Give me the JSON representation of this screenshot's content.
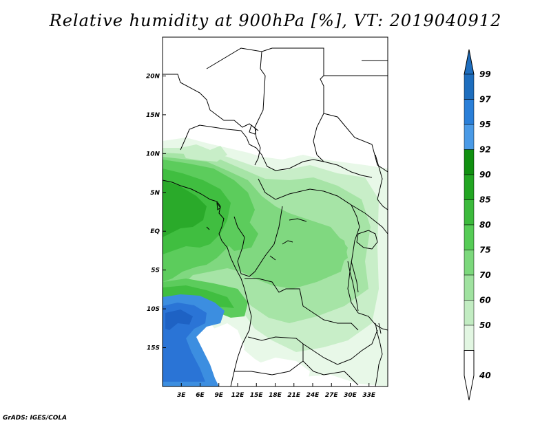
{
  "title": "Relative humidity at 900hPa [%], VT: 2019040912",
  "credit": "GrADS: IGES/COLA",
  "map": {
    "lon_range": [
      0,
      36
    ],
    "lat_range": [
      -20,
      25
    ],
    "lon_ticks": [
      {
        "value": 3,
        "label": "3E"
      },
      {
        "value": 6,
        "label": "6E"
      },
      {
        "value": 9,
        "label": "9E"
      },
      {
        "value": 12,
        "label": "12E"
      },
      {
        "value": 15,
        "label": "15E"
      },
      {
        "value": 18,
        "label": "18E"
      },
      {
        "value": 21,
        "label": "21E"
      },
      {
        "value": 24,
        "label": "24E"
      },
      {
        "value": 27,
        "label": "27E"
      },
      {
        "value": 30,
        "label": "30E"
      },
      {
        "value": 33,
        "label": "33E"
      }
    ],
    "lat_ticks": [
      {
        "value": 20,
        "label": "20N"
      },
      {
        "value": 15,
        "label": "15N"
      },
      {
        "value": 10,
        "label": "10N"
      },
      {
        "value": 5,
        "label": "5N"
      },
      {
        "value": 0,
        "label": "EQ"
      },
      {
        "value": -5,
        "label": "5S"
      },
      {
        "value": -10,
        "label": "10S"
      },
      {
        "value": -15,
        "label": "15S"
      }
    ]
  },
  "colorbar": {
    "levels": [
      {
        "label": "99",
        "color": "#1e6ebe"
      },
      {
        "label": "97",
        "color": "#2a7fd8"
      },
      {
        "label": "95",
        "color": "#4a9ae6"
      },
      {
        "label": "92",
        "color": "#109010"
      },
      {
        "label": "90",
        "color": "#22a622"
      },
      {
        "label": "85",
        "color": "#3cba3c"
      },
      {
        "label": "80",
        "color": "#56cc56"
      },
      {
        "label": "75",
        "color": "#7cd87c"
      },
      {
        "label": "70",
        "color": "#a0e2a0"
      },
      {
        "label": "60",
        "color": "#c2ecc2"
      },
      {
        "label": "50",
        "color": "#e2f6e2"
      },
      {
        "label": "40",
        "color": "#f4fcf4"
      }
    ],
    "top_color": "#1e6ebe",
    "bottom_color": "#ffffff"
  },
  "colors": {
    "dry": "#ffffff",
    "c50": "#e8f8e8",
    "c60": "#c8eec8",
    "c70": "#a6e4a6",
    "c75": "#80d880",
    "c80": "#5ccc5c",
    "c85": "#40be40",
    "c90": "#2aaa2a",
    "c95": "#3c8ee0",
    "c97": "#2a74d6"
  }
}
